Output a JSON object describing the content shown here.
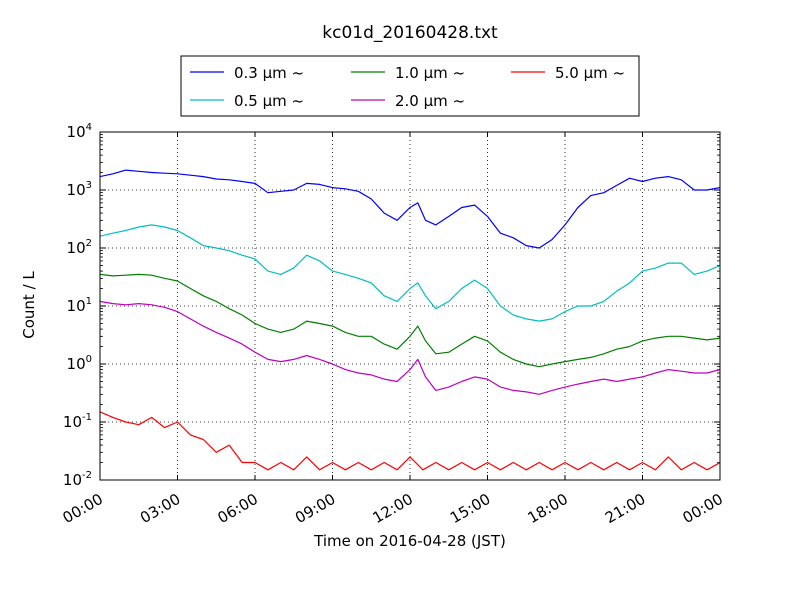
{
  "chart_data": {
    "type": "line",
    "title": "kc01d_20160428.txt",
    "xlabel": "Time on 2016-04-28 (JST)",
    "ylabel": "Count / L",
    "yscale": "log",
    "ylim": [
      0.01,
      10000
    ],
    "xlim": [
      0,
      24
    ],
    "grid": true,
    "legend_position": "top-center",
    "x_ticks": [
      {
        "x": 0,
        "label": "00:00"
      },
      {
        "x": 3,
        "label": "03:00"
      },
      {
        "x": 6,
        "label": "06:00"
      },
      {
        "x": 9,
        "label": "09:00"
      },
      {
        "x": 12,
        "label": "12:00"
      },
      {
        "x": 15,
        "label": "15:00"
      },
      {
        "x": 18,
        "label": "18:00"
      },
      {
        "x": 21,
        "label": "21:00"
      },
      {
        "x": 24,
        "label": "00:00"
      }
    ],
    "y_ticks": [
      {
        "value": 0.01,
        "base": "10",
        "exp": "-2"
      },
      {
        "value": 0.1,
        "base": "10",
        "exp": "-1"
      },
      {
        "value": 1,
        "base": "10",
        "exp": "0"
      },
      {
        "value": 10,
        "base": "10",
        "exp": "1"
      },
      {
        "value": 100,
        "base": "10",
        "exp": "2"
      },
      {
        "value": 1000,
        "base": "10",
        "exp": "3"
      },
      {
        "value": 10000,
        "base": "10",
        "exp": "4"
      }
    ],
    "series": [
      {
        "name": "0.3 μm ~",
        "color": "#0000ff",
        "x": [
          0,
          0.5,
          1,
          1.5,
          2,
          2.5,
          3,
          3.5,
          4,
          4.5,
          5,
          5.5,
          6,
          6.5,
          7,
          7.5,
          8,
          8.5,
          9,
          9.5,
          10,
          10.5,
          11,
          11.5,
          12,
          12.3,
          12.6,
          13,
          13.5,
          14,
          14.5,
          15,
          15.5,
          16,
          16.5,
          17,
          17.5,
          18,
          18.5,
          19,
          19.5,
          20,
          20.5,
          21,
          21.5,
          22,
          22.5,
          23,
          23.5,
          24
        ],
        "y": [
          1700,
          1900,
          2200,
          2100,
          2000,
          1950,
          1900,
          1800,
          1700,
          1550,
          1500,
          1400,
          1300,
          900,
          950,
          1000,
          1300,
          1250,
          1100,
          1050,
          950,
          700,
          400,
          300,
          500,
          600,
          300,
          250,
          350,
          500,
          550,
          350,
          180,
          150,
          110,
          100,
          140,
          250,
          500,
          800,
          900,
          1200,
          1600,
          1400,
          1600,
          1700,
          1500,
          1000,
          1000,
          1100
        ]
      },
      {
        "name": "0.5 μm ~",
        "color": "#00bfbf",
        "x": [
          0,
          0.5,
          1,
          1.5,
          2,
          2.5,
          3,
          3.5,
          4,
          4.5,
          5,
          5.5,
          6,
          6.5,
          7,
          7.5,
          8,
          8.5,
          9,
          9.5,
          10,
          10.5,
          11,
          11.5,
          12,
          12.3,
          12.6,
          13,
          13.5,
          14,
          14.5,
          15,
          15.5,
          16,
          16.5,
          17,
          17.5,
          18,
          18.5,
          19,
          19.5,
          20,
          20.5,
          21,
          21.5,
          22,
          22.5,
          23,
          23.5,
          24
        ],
        "y": [
          160,
          180,
          200,
          230,
          250,
          230,
          200,
          150,
          110,
          100,
          90,
          75,
          65,
          40,
          35,
          45,
          75,
          60,
          40,
          35,
          30,
          25,
          15,
          12,
          20,
          25,
          15,
          9,
          12,
          20,
          28,
          20,
          10,
          7,
          6,
          5.5,
          6,
          8,
          10,
          10,
          12,
          18,
          25,
          40,
          45,
          55,
          55,
          35,
          40,
          50
        ]
      },
      {
        "name": "1.0 μm ~",
        "color": "#008000",
        "x": [
          0,
          0.5,
          1,
          1.5,
          2,
          2.5,
          3,
          3.5,
          4,
          4.5,
          5,
          5.5,
          6,
          6.5,
          7,
          7.5,
          8,
          8.5,
          9,
          9.5,
          10,
          10.5,
          11,
          11.5,
          12,
          12.3,
          12.6,
          13,
          13.5,
          14,
          14.5,
          15,
          15.5,
          16,
          16.5,
          17,
          17.5,
          18,
          18.5,
          19,
          19.5,
          20,
          20.5,
          21,
          21.5,
          22,
          22.5,
          23,
          23.5,
          24
        ],
        "y": [
          35,
          33,
          34,
          35,
          34,
          30,
          27,
          20,
          15,
          12,
          9,
          7,
          5,
          4,
          3.5,
          4,
          5.5,
          5,
          4.5,
          3.5,
          3,
          3,
          2.2,
          1.8,
          3,
          4.5,
          2.5,
          1.5,
          1.6,
          2.2,
          3,
          2.5,
          1.6,
          1.2,
          1,
          0.9,
          1,
          1.1,
          1.2,
          1.3,
          1.5,
          1.8,
          2,
          2.5,
          2.8,
          3,
          3,
          2.8,
          2.6,
          2.8
        ]
      },
      {
        "name": "2.0 μm ~",
        "color": "#bf00bf",
        "x": [
          0,
          0.5,
          1,
          1.5,
          2,
          2.5,
          3,
          3.5,
          4,
          4.5,
          5,
          5.5,
          6,
          6.5,
          7,
          7.5,
          8,
          8.5,
          9,
          9.5,
          10,
          10.5,
          11,
          11.5,
          12,
          12.3,
          12.6,
          13,
          13.5,
          14,
          14.5,
          15,
          15.5,
          16,
          16.5,
          17,
          17.5,
          18,
          18.5,
          19,
          19.5,
          20,
          20.5,
          21,
          21.5,
          22,
          22.5,
          23,
          23.5,
          24
        ],
        "y": [
          12,
          11,
          10.5,
          11,
          10.5,
          9.5,
          8,
          6,
          4.5,
          3.5,
          2.8,
          2.2,
          1.6,
          1.2,
          1.1,
          1.2,
          1.4,
          1.2,
          1,
          0.8,
          0.7,
          0.65,
          0.55,
          0.5,
          0.8,
          1.2,
          0.6,
          0.35,
          0.4,
          0.5,
          0.6,
          0.55,
          0.4,
          0.35,
          0.33,
          0.3,
          0.35,
          0.4,
          0.45,
          0.5,
          0.55,
          0.5,
          0.55,
          0.6,
          0.7,
          0.8,
          0.75,
          0.7,
          0.7,
          0.8
        ]
      },
      {
        "name": "5.0 μm ~",
        "color": "#ff0000",
        "x": [
          0,
          0.5,
          1,
          1.5,
          2,
          2.5,
          3,
          3.5,
          4,
          4.5,
          5,
          5.5,
          6,
          6.5,
          7,
          7.5,
          8,
          8.5,
          9,
          9.5,
          10,
          10.5,
          11,
          11.5,
          12,
          12.5,
          13,
          13.5,
          14,
          14.5,
          15,
          15.5,
          16,
          16.5,
          17,
          17.5,
          18,
          18.5,
          19,
          19.5,
          20,
          20.5,
          21,
          21.5,
          22,
          22.5,
          23,
          23.5,
          24
        ],
        "y": [
          0.15,
          0.12,
          0.1,
          0.09,
          0.12,
          0.08,
          0.1,
          0.06,
          0.05,
          0.03,
          0.04,
          0.02,
          0.02,
          0.015,
          0.02,
          0.015,
          0.025,
          0.015,
          0.02,
          0.015,
          0.02,
          0.015,
          0.02,
          0.015,
          0.025,
          0.015,
          0.02,
          0.015,
          0.02,
          0.015,
          0.02,
          0.015,
          0.02,
          0.015,
          0.02,
          0.015,
          0.02,
          0.015,
          0.02,
          0.015,
          0.02,
          0.015,
          0.02,
          0.015,
          0.025,
          0.015,
          0.02,
          0.015,
          0.02
        ]
      }
    ]
  }
}
